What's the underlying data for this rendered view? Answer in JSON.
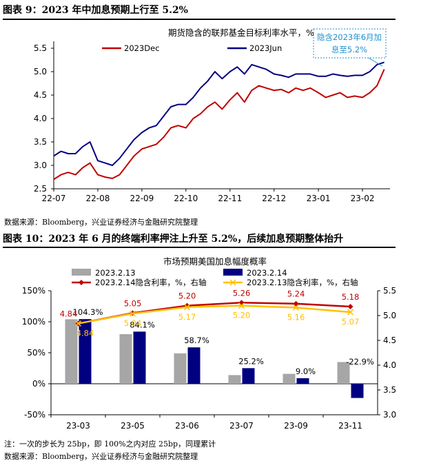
{
  "figure1": {
    "title": "图表 9：2023 年中加息预期上行至 5.2%",
    "source": "数据来源：Bloomberg，兴业证券经济与金融研究院整理"
  },
  "figure2": {
    "title": "图表 10：2023 年 6 月的终端利率押注上升至 5.2%，后续加息预期整体抬升",
    "note": "注：一次的步长为 25bp，即 100%之内对应 25bp，同理累计",
    "source": "数据来源：Bloomberg，兴业证券经济与金融研究院整理"
  },
  "colors": {
    "red": "#c00000",
    "navy": "#000080",
    "gray": "#a6a6a6",
    "yellow": "#ffc000",
    "blue_note": "#1f8fce"
  },
  "chart_data": [
    {
      "type": "line",
      "title": "期货隐含的联邦基金目标利率水平，%",
      "annotation": "隐含2023年6月加息至5.2%",
      "x_ticks": [
        "22-07",
        "22-08",
        "22-09",
        "22-10",
        "22-11",
        "22-12",
        "23-01",
        "23-02"
      ],
      "y_ticks": [
        "2.5",
        "3.0",
        "3.5",
        "4.0",
        "4.5",
        "5.0",
        "5.5"
      ],
      "ylim": [
        2.5,
        5.5
      ],
      "x": [
        "22-07-01",
        "22-07-06",
        "22-07-11",
        "22-07-16",
        "22-07-21",
        "22-07-26",
        "22-08-01",
        "22-08-06",
        "22-08-11",
        "22-08-16",
        "22-08-21",
        "22-08-26",
        "22-09-01",
        "22-09-06",
        "22-09-11",
        "22-09-16",
        "22-09-21",
        "22-09-26",
        "22-10-01",
        "22-10-06",
        "22-10-11",
        "22-10-16",
        "22-10-21",
        "22-10-26",
        "22-11-01",
        "22-11-06",
        "22-11-11",
        "22-11-16",
        "22-11-21",
        "22-11-26",
        "22-12-01",
        "22-12-06",
        "22-12-11",
        "22-12-16",
        "22-12-21",
        "22-12-26",
        "23-01-01",
        "23-01-06",
        "23-01-11",
        "23-01-16",
        "23-01-21",
        "23-01-26",
        "23-02-01",
        "23-02-06",
        "23-02-11",
        "23-02-16"
      ],
      "series": [
        {
          "name": "2023Dec",
          "color": "#c00000",
          "values": [
            2.7,
            2.8,
            2.85,
            2.8,
            2.95,
            3.05,
            2.8,
            2.75,
            2.72,
            2.8,
            3.0,
            3.2,
            3.35,
            3.4,
            3.45,
            3.6,
            3.8,
            3.85,
            3.8,
            4.0,
            4.1,
            4.25,
            4.35,
            4.2,
            4.4,
            4.55,
            4.35,
            4.6,
            4.7,
            4.65,
            4.6,
            4.62,
            4.55,
            4.65,
            4.6,
            4.65,
            4.55,
            4.45,
            4.5,
            4.55,
            4.45,
            4.48,
            4.45,
            4.55,
            4.7,
            5.05
          ]
        },
        {
          "name": "2023Jun",
          "color": "#000080",
          "values": [
            3.2,
            3.3,
            3.25,
            3.25,
            3.4,
            3.5,
            3.1,
            3.05,
            3.0,
            3.15,
            3.35,
            3.55,
            3.7,
            3.8,
            3.85,
            4.05,
            4.25,
            4.3,
            4.3,
            4.45,
            4.65,
            4.8,
            5.0,
            4.85,
            5.0,
            5.1,
            4.95,
            5.15,
            5.1,
            5.05,
            4.95,
            4.92,
            4.88,
            4.95,
            4.95,
            4.95,
            4.9,
            4.9,
            4.95,
            4.92,
            4.9,
            4.92,
            4.92,
            5.0,
            5.15,
            5.2
          ]
        }
      ]
    },
    {
      "type": "bar",
      "title": "市场预期美国加息幅度概率",
      "categories": [
        "23-03",
        "23-05",
        "23-06",
        "23-07",
        "23-09",
        "23-11"
      ],
      "y_left_ticks": [
        "-50%",
        "0%",
        "50%",
        "100%",
        "150%"
      ],
      "y_right_ticks": [
        "3.0",
        "3.5",
        "4.0",
        "4.5",
        "5.0",
        "5.5"
      ],
      "ylim_left": [
        -50,
        150
      ],
      "ylim_right": [
        3.0,
        5.5
      ],
      "bar_series": [
        {
          "name": "2023.2.13",
          "color": "#a6a6a6",
          "values": [
            104,
            80,
            49,
            14,
            16,
            35
          ]
        },
        {
          "name": "2023.2.14",
          "color": "#000080",
          "values": [
            104.3,
            84.1,
            58.7,
            25.2,
            9.0,
            -22.9
          ],
          "labels": [
            "104.3%",
            "84.1%",
            "58.7%",
            "25.2%",
            "9.0%",
            "-22.9%"
          ]
        }
      ],
      "line_series": [
        {
          "name": "2023.2.14隐含利率，%，右轴",
          "color": "#c00000",
          "values": [
            4.84,
            5.05,
            5.2,
            5.26,
            5.24,
            5.18
          ],
          "labels": [
            "4.84",
            "5.05",
            "5.20",
            "5.26",
            "5.24",
            "5.18"
          ]
        },
        {
          "name": "2023.2.13隐含利率，%，右轴",
          "color": "#ffc000",
          "values": [
            4.84,
            5.04,
            5.17,
            5.2,
            5.16,
            5.07
          ],
          "labels": [
            "4.84",
            "5.04",
            "5.17",
            "5.20",
            "5.16",
            "5.07"
          ]
        }
      ]
    }
  ]
}
